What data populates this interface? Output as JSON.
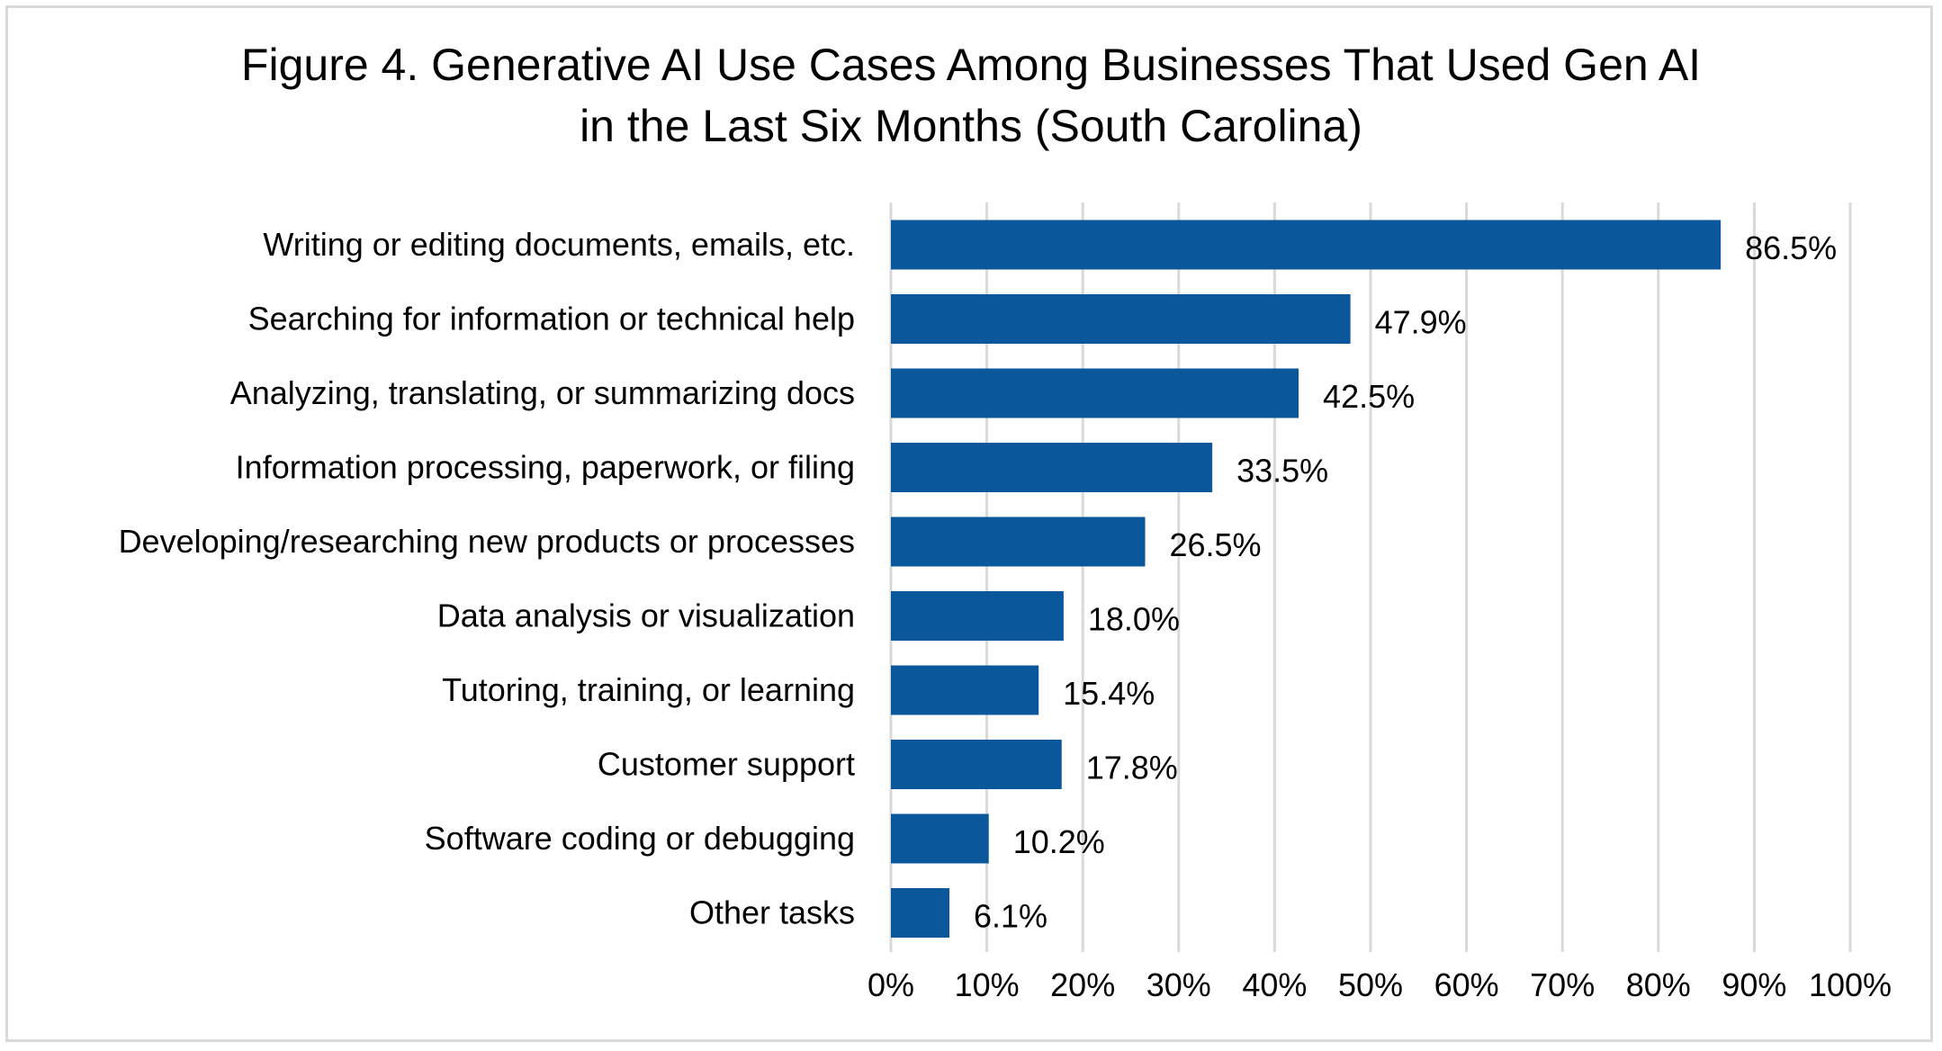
{
  "chart_data": {
    "type": "bar",
    "orientation": "horizontal",
    "title_lines": [
      "Figure 4. Generative AI Use Cases Among Businesses That Used Gen AI",
      "in the Last Six Months (South Carolina)"
    ],
    "categories": [
      "Writing or editing documents, emails, etc.",
      "Searching for information or technical help",
      "Analyzing, translating, or summarizing docs",
      "Information processing, paperwork, or filing",
      "Developing/researching new products or processes",
      "Data analysis or visualization",
      "Tutoring, training, or learning",
      "Customer support",
      "Software coding or debugging",
      "Other tasks"
    ],
    "values": [
      86.5,
      47.9,
      42.5,
      33.5,
      26.5,
      18.0,
      15.4,
      17.8,
      10.2,
      6.1
    ],
    "value_labels": [
      "86.5%",
      "47.9%",
      "42.5%",
      "33.5%",
      "26.5%",
      "18.0%",
      "15.4%",
      "17.8%",
      "10.2%",
      "6.1%"
    ],
    "x_ticks": [
      0,
      10,
      20,
      30,
      40,
      50,
      60,
      70,
      80,
      90,
      100
    ],
    "x_tick_labels": [
      "0%",
      "10%",
      "20%",
      "30%",
      "40%",
      "50%",
      "60%",
      "70%",
      "80%",
      "90%",
      "100%"
    ],
    "xlim": [
      0,
      100
    ],
    "xlabel": "",
    "ylabel": "",
    "grid": "vertical",
    "legend": "none",
    "colors": {
      "bar": "#0B579B",
      "grid": "#d9d9d9",
      "frame": "#d9d9d9",
      "text": "#000000"
    }
  }
}
